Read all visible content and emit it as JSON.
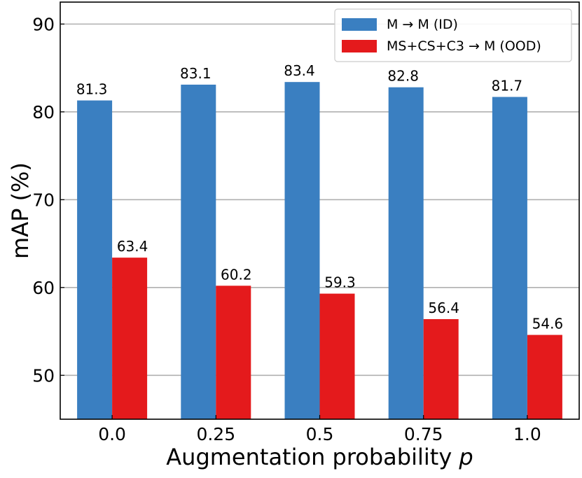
{
  "chart_data": {
    "type": "bar",
    "title": "",
    "xlabel": "Augmentation probability",
    "xlabel_var": "p",
    "ylabel": "mAP (%)",
    "ylim": [
      45,
      92.5
    ],
    "yticks": [
      50,
      60,
      70,
      80,
      90
    ],
    "grid": "y-major",
    "legend_position": "top-right",
    "categories": [
      "0.0",
      "0.25",
      "0.5",
      "0.75",
      "1.0"
    ],
    "series": [
      {
        "name": "M → M (ID)",
        "color": "#3a7fc1",
        "values": [
          81.3,
          83.1,
          83.4,
          82.8,
          81.7
        ],
        "labels": [
          "81.3",
          "83.1",
          "83.4",
          "82.8",
          "81.7"
        ]
      },
      {
        "name": "MS+CS+C3 → M (OOD)",
        "color": "#e41a1c",
        "values": [
          63.4,
          60.2,
          59.3,
          56.4,
          54.6
        ],
        "labels": [
          "63.4",
          "60.2",
          "59.3",
          "56.4",
          "54.6"
        ]
      }
    ]
  }
}
